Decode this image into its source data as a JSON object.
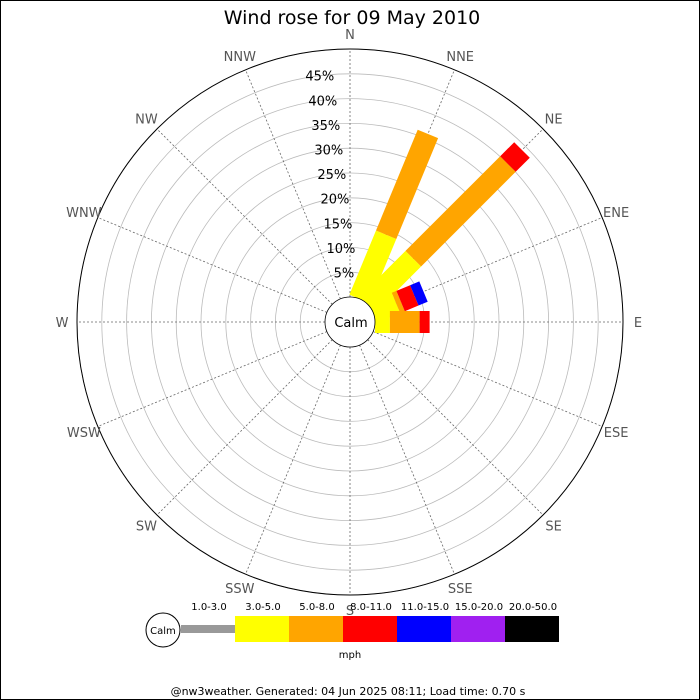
{
  "chart_data": {
    "type": "windrose",
    "title": "Wind rose for 09 May 2010",
    "calm_label": "Calm",
    "directions": [
      "N",
      "NNE",
      "NE",
      "ENE",
      "E",
      "ESE",
      "SE",
      "SSE",
      "S",
      "SSW",
      "SW",
      "WSW",
      "W",
      "WNW",
      "NW",
      "NNW"
    ],
    "radial_ticks": [
      "5%",
      "10%",
      "15%",
      "20%",
      "25%",
      "30%",
      "35%",
      "40%",
      "45%"
    ],
    "rlim": [
      0,
      50
    ],
    "legend": {
      "unit": "mph",
      "calm_label": "Calm",
      "bins": [
        {
          "label": "1.0-3.0",
          "color": "#999999"
        },
        {
          "label": "3.0-5.0",
          "color": "#ffff00"
        },
        {
          "label": "5.0-8.0",
          "color": "#ffa500"
        },
        {
          "label": "8.0-11.0",
          "color": "#ff0000"
        },
        {
          "label": "11.0-15.0",
          "color": "#0000ff"
        },
        {
          "label": "15.0-20.0",
          "color": "#a020f0"
        },
        {
          "label": "20.0-50.0",
          "color": "#000000"
        }
      ]
    },
    "series": [
      {
        "direction": "NNE",
        "segments": [
          {
            "bin": "3.0-5.0",
            "from": 0,
            "to": 14
          },
          {
            "bin": "5.0-8.0",
            "from": 14,
            "to": 36
          }
        ]
      },
      {
        "direction": "NE",
        "segments": [
          {
            "bin": "3.0-5.0",
            "from": 0,
            "to": 13
          },
          {
            "bin": "5.0-8.0",
            "from": 13,
            "to": 40
          },
          {
            "bin": "8.0-11.0",
            "from": 40,
            "to": 44
          }
        ]
      },
      {
        "direction": "ENE",
        "segments": [
          {
            "bin": "3.0-5.0",
            "from": 0,
            "to": 5
          },
          {
            "bin": "5.0-8.0",
            "from": 5,
            "to": 6
          },
          {
            "bin": "8.0-11.0",
            "from": 6,
            "to": 9
          },
          {
            "bin": "11.0-15.0",
            "from": 9,
            "to": 11
          }
        ]
      },
      {
        "direction": "E",
        "segments": [
          {
            "bin": "3.0-5.0",
            "from": 0,
            "to": 3
          },
          {
            "bin": "5.0-8.0",
            "from": 3,
            "to": 9
          },
          {
            "bin": "8.0-11.0",
            "from": 9,
            "to": 11
          }
        ]
      }
    ]
  },
  "footer": "@nw3weather. Generated: 04 Jun 2025 08:11; Load time: 0.70 s"
}
